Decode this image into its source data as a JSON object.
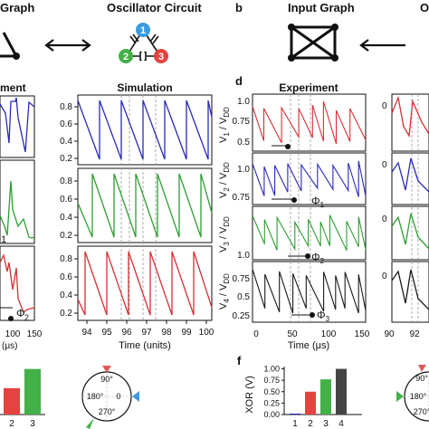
{
  "panel_letters": {
    "b": "b",
    "d": "d",
    "f": "f"
  },
  "headers": {
    "graph_left": "Graph",
    "oscillator_circuit": "Oscillator Circuit",
    "input_graph": "Input Graph",
    "right_clip": "O",
    "experiment_left": "ment",
    "simulation": "Simulation",
    "experiment_d": "Experiment"
  },
  "node_labels": [
    "1",
    "2",
    "3"
  ],
  "colors": {
    "blue": "#2a2ab8",
    "green": "#2e9e32",
    "red": "#d63035",
    "black": "#1a1a1a",
    "node_blue": "#3b9be0",
    "node_green": "#43b04a",
    "node_red": "#e3443f",
    "triangle_marker": "#e05a5a",
    "gray_bar": "#555555"
  },
  "simulation": {
    "xaxis_label": "Time (units)",
    "x_ticks": [
      "94",
      "95",
      "96",
      "97",
      "98",
      "99",
      "100"
    ],
    "y_ticks": [
      "0.8",
      "0.6",
      "0.4",
      "0.2"
    ]
  },
  "left_partial": {
    "x_ticks": [
      "100",
      "150"
    ],
    "xaxis_label_clip": "(μs)",
    "phi_labels": [
      "1",
      "Φ",
      "2"
    ]
  },
  "experiment_d": {
    "xaxis_label": "Time (μs)",
    "x_ticks": [
      "0",
      "50",
      "100",
      "150"
    ],
    "ylabels": [
      {
        "v": "V",
        "sub": "1",
        "mid": " / V",
        "dd": "DD"
      },
      {
        "v": "V",
        "sub": "2",
        "mid": " / V",
        "dd": "DD"
      },
      {
        "v": "V",
        "sub": "3",
        "mid": " / V",
        "dd": "DD"
      },
      {
        "v": "V",
        "sub": "4",
        "mid": " / V",
        "dd": "DD"
      }
    ],
    "row_ticks": [
      [
        "1.0",
        "0.75",
        "0.5"
      ],
      [
        "1.0",
        "0.75"
      ],
      [
        "1.0"
      ],
      [
        "0.75",
        "0.5",
        "0.25"
      ]
    ],
    "phi_labels": [
      {
        "phi": "Φ",
        "sub": "1"
      },
      {
        "phi": "Φ",
        "sub": "2"
      },
      {
        "phi": "Φ",
        "sub": "3"
      }
    ]
  },
  "right_partial": {
    "x_ticks": [
      "90",
      "92"
    ],
    "y_tick_clip": [
      "0",
      "0",
      "0",
      "0"
    ]
  },
  "bars_left": {
    "categories": [
      "2",
      "3"
    ],
    "values": [
      0.55,
      0.95
    ],
    "colors": [
      "#e3443f",
      "#43b04a"
    ]
  },
  "polar": {
    "labels": [
      "90°",
      "180°",
      "270°",
      "0"
    ]
  },
  "chart_data": {
    "type": "bar",
    "title": "",
    "xlabel": "",
    "ylabel": "XOR (V)",
    "categories": [
      "1",
      "2",
      "3",
      "4"
    ],
    "values": [
      0.02,
      0.5,
      0.77,
      1.0
    ],
    "yticks": [
      "0.00",
      "0.25",
      "0.50",
      "0.75",
      "1.00"
    ],
    "ylim": [
      0,
      1.05
    ],
    "colors": [
      "#2a2ab8",
      "#e3443f",
      "#43b04a",
      "#444444"
    ]
  }
}
